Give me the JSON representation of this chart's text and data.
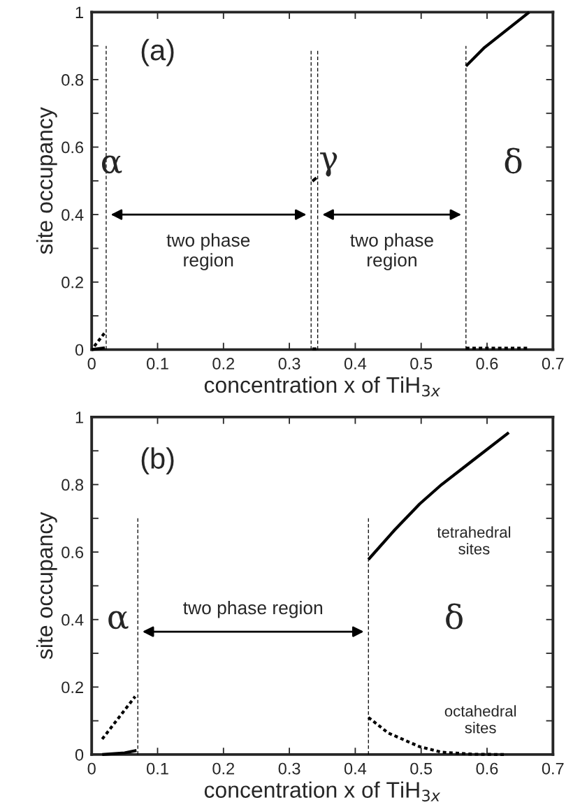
{
  "chart_data": [
    {
      "type": "line",
      "xlabel": "concentration x of TiH$_{3x}$",
      "ylabel": "site occupancy",
      "xlim": [
        0,
        0.7
      ],
      "ylim": [
        0,
        1
      ],
      "xticks": [
        {
          "value": 0,
          "label": "0"
        },
        0.1,
        0.2,
        0.3,
        0.4,
        0.5,
        0.6,
        0.7
      ],
      "yticks": [
        {
          "value": 0,
          "label": "0"
        },
        {
          "value": 0.1,
          "label": null
        },
        0.2,
        {
          "value": 0.3,
          "label": null
        },
        0.4,
        {
          "value": 0.5,
          "label": null
        },
        0.6,
        {
          "value": 0.7,
          "label": null
        },
        0.8,
        {
          "value": 0.9,
          "label": null
        },
        {
          "value": 1,
          "label": "1"
        }
      ],
      "grid": false,
      "legend": false,
      "series": [
        {
          "color": "#000000",
          "line_style": "dashed",
          "x": [
            0.022,
            0.022
          ],
          "values": [
            0,
            0.9
          ]
        },
        {
          "color": "#000000",
          "line_style": "dashed",
          "x": [
            0.333,
            0.333
          ],
          "values": [
            0,
            0.89
          ]
        },
        {
          "color": "#000000",
          "line_style": "dashed",
          "x": [
            0.343,
            0.343
          ],
          "values": [
            0,
            0.89
          ]
        },
        {
          "color": "#000000",
          "line_style": "dashed",
          "x": [
            0.568,
            0.568
          ],
          "values": [
            0,
            0.9
          ]
        },
        {
          "color": "#000000",
          "line_style": "solid",
          "x": [
            0.0,
            0.02
          ],
          "values": [
            0.0,
            0.005
          ]
        },
        {
          "color": "#000000",
          "line_style": "dotted",
          "x": [
            0.004,
            0.02
          ],
          "values": [
            0.01,
            0.05
          ]
        },
        {
          "color": "#000000",
          "line_style": "solid",
          "x": [
            0.335,
            0.341
          ],
          "values": [
            0.499,
            0.509
          ]
        },
        {
          "color": "#000000",
          "line_style": "solid",
          "x": [
            0.335,
            0.341
          ],
          "values": [
            0.002,
            0.002
          ]
        },
        {
          "color": "#000000",
          "line_style": "solid",
          "x": [
            0.568,
            0.596,
            0.664
          ],
          "values": [
            0.84,
            0.895,
            1.0
          ]
        },
        {
          "color": "#000000",
          "line_style": "dotted",
          "x": [
            0.568,
            0.664
          ],
          "values": [
            0.004,
            0.004
          ]
        }
      ],
      "annotations": [
        "(a)",
        "α",
        "γ",
        "δ",
        "two phase\nregion",
        "two phase\nregion"
      ]
    },
    {
      "type": "line",
      "xlabel": "concentration x of TiH$_{3x}$",
      "ylabel": "site occupancy",
      "xlim": [
        0,
        0.7
      ],
      "ylim": [
        0,
        1
      ],
      "xticks": [
        {
          "value": 0,
          "label": "0"
        },
        0.1,
        0.2,
        0.3,
        0.4,
        0.5,
        0.6,
        0.7
      ],
      "yticks": [
        {
          "value": 0,
          "label": "0"
        },
        {
          "value": 0.1,
          "label": null
        },
        0.2,
        {
          "value": 0.3,
          "label": null
        },
        0.4,
        {
          "value": 0.5,
          "label": null
        },
        0.6,
        {
          "value": 0.7,
          "label": null
        },
        0.8,
        {
          "value": 0.9,
          "label": null
        },
        {
          "value": 1,
          "label": "1"
        }
      ],
      "grid": false,
      "legend": false,
      "series": [
        {
          "color": "#000000",
          "line_style": "dashed",
          "x": [
            0.07,
            0.07
          ],
          "values": [
            0,
            0.7
          ]
        },
        {
          "color": "#000000",
          "line_style": "dashed",
          "x": [
            0.42,
            0.42
          ],
          "values": [
            0,
            0.7
          ]
        },
        {
          "color": "#000000",
          "line_style": "solid",
          "x": [
            0.016,
            0.05,
            0.068
          ],
          "values": [
            0.0,
            0.005,
            0.012
          ]
        },
        {
          "color": "#000000",
          "line_style": "dotted",
          "x": [
            0.016,
            0.066
          ],
          "values": [
            0.046,
            0.172
          ]
        },
        {
          "color": "#000000",
          "line_style": "solid",
          "x": [
            0.42,
            0.46,
            0.498,
            0.531,
            0.578,
            0.633
          ],
          "values": [
            0.578,
            0.666,
            0.743,
            0.8,
            0.871,
            0.954
          ]
        },
        {
          "color": "#000000",
          "line_style": "dotted",
          "x": [
            0.42,
            0.45,
            0.498,
            0.531,
            0.578,
            0.63
          ],
          "values": [
            0.11,
            0.064,
            0.023,
            0.007,
            0.001,
            0.0
          ]
        }
      ],
      "annotations": [
        "(b)",
        "α",
        "δ",
        "two phase region",
        "tetrahedral\nsites",
        "octahedral\nsites"
      ]
    }
  ]
}
